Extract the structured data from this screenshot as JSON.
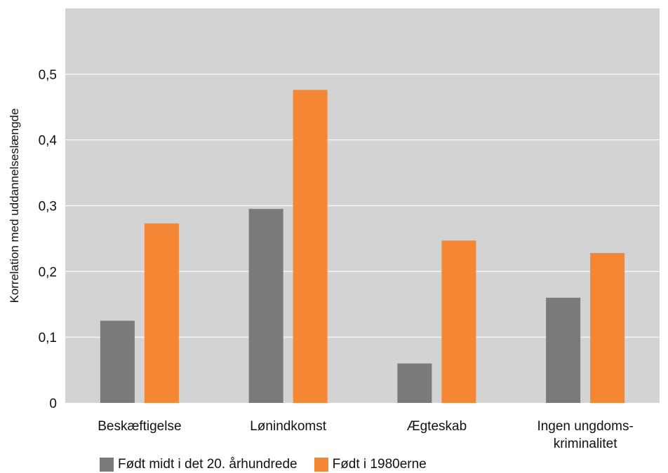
{
  "chart_data": {
    "type": "bar",
    "categories": [
      [
        "Beskæftigelse"
      ],
      [
        "Lønindkomst"
      ],
      [
        "Ægteskab"
      ],
      [
        "Ingen ungdoms-",
        "kriminalitet"
      ]
    ],
    "series": [
      {
        "name": "Født midt i det 20. århundrede",
        "color": "#7a7a7a",
        "values": [
          0.125,
          0.295,
          0.06,
          0.16
        ]
      },
      {
        "name": "Født i 1980erne",
        "color": "#f58634",
        "values": [
          0.273,
          0.476,
          0.247,
          0.228
        ]
      }
    ],
    "ylabel": "Korrelation med uddannelseslængde",
    "xlabel": "",
    "title": "",
    "ylim": [
      0,
      0.6
    ],
    "yticks": [
      0,
      0.1,
      0.2,
      0.3,
      0.4,
      0.5
    ],
    "ytick_labels": [
      "0",
      "0,1",
      "0,2",
      "0,3",
      "0,4",
      "0,5"
    ],
    "grid": true,
    "plot_background": "#d3d3d3",
    "legend_position": "bottom"
  },
  "legend": {
    "items": [
      {
        "label": "Født midt i det 20. århundrede",
        "color": "#7a7a7a"
      },
      {
        "label": "Født i 1980erne",
        "color": "#f58634"
      }
    ]
  }
}
